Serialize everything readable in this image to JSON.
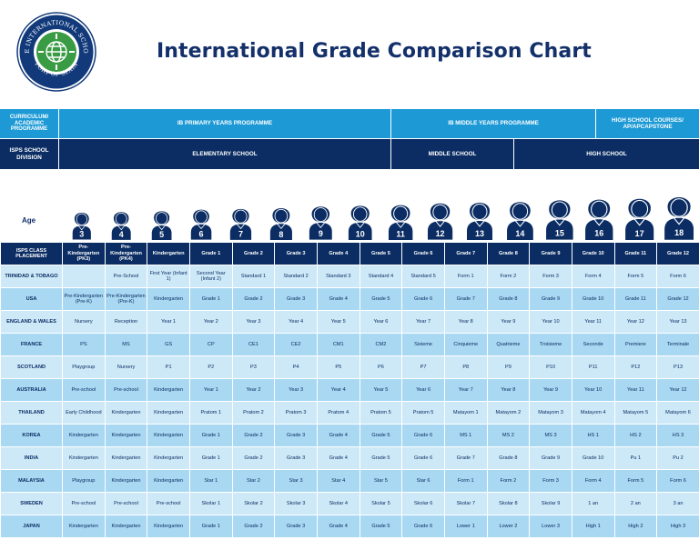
{
  "logo": {
    "text_top": "THE INTERNATIONAL SCHOOL",
    "text_bottom": "PORT OF SPAIN",
    "colors": {
      "navy": "#123a7a",
      "green": "#3a9b45",
      "blue": "#1d9ad6"
    }
  },
  "title": "International Grade Comparison Chart",
  "colors": {
    "light_blue": "#1d9ad6",
    "navy": "#0b2d63",
    "row_light": "#cde9f8",
    "row_mid": "#a9d8f2"
  },
  "curriculum": {
    "label": "CURRICULUM/ ACADEMIC PROGRAMME",
    "pyp": "IB PRIMARY YEARS PROGRAMME",
    "myp": "IB MIDDLE YEARS PROGRAMME",
    "hs": "HIGH SCHOOL COURSES/ AP/APCAPSTONE"
  },
  "division": {
    "label": "ISPS SCHOOL DIVISION",
    "elementary": "ELEMENTARY SCHOOL",
    "middle": "MIDDLE SCHOOL",
    "high": "HIGH SCHOOL"
  },
  "age": {
    "label": "Age",
    "values": [
      "3",
      "4",
      "5",
      "6",
      "7",
      "8",
      "9",
      "10",
      "11",
      "12",
      "13",
      "14",
      "15",
      "16",
      "17",
      "18"
    ]
  },
  "table": {
    "header_label": "ISPS CLASS PLACEMENT",
    "columns": [
      "Pre-Kindergarten (PK3)",
      "Pre-Kindergarten (PK4)",
      "Kindergarten",
      "Grade 1",
      "Grade 2",
      "Grade 3",
      "Grade 4",
      "Grade 5",
      "Grade 6",
      "Grade 7",
      "Grade 8",
      "Grade 9",
      "Grade 10",
      "Grade 11",
      "Grade 12"
    ],
    "rows": [
      {
        "label": "TRINIDAD & TOBAGO",
        "cells": [
          "",
          "Pre-School",
          "First Year (Infant 1)",
          "Second Year (Infant 2)",
          "Standard 1",
          "Standard 2",
          "Standard 3",
          "Standard 4",
          "Standard 5",
          "Form 1",
          "Form 2",
          "Form 3",
          "Form 4",
          "Form 5",
          "Form 6"
        ]
      },
      {
        "label": "USA",
        "cells": [
          "Pre-Kindergarten (Pre-K)",
          "Pre-Kindergarten (Pre-K)",
          "Kindergarten",
          "Grade 1",
          "Grade 2",
          "Grade 3",
          "Grade 4",
          "Grade 5",
          "Grade 6",
          "Grade 7",
          "Grade 8",
          "Grade 9",
          "Grade 10",
          "Grade 11",
          "Grade 12"
        ]
      },
      {
        "label": "ENGLAND & WALES",
        "cells": [
          "Nursery",
          "Reception",
          "Year 1",
          "Year 2",
          "Year 3",
          "Year 4",
          "Year 5",
          "Year 6",
          "Year 7",
          "Year 8",
          "Year 9",
          "Year 10",
          "Year 11",
          "Year 12",
          "Year 13"
        ]
      },
      {
        "label": "FRANCE",
        "cells": [
          "PS",
          "MS",
          "GS",
          "CP",
          "CE1",
          "CE2",
          "CM1",
          "CM2",
          "Sixieme",
          "Cinquieme",
          "Quatrieme",
          "Troisieme",
          "Seconde",
          "Premiere",
          "Terminale"
        ]
      },
      {
        "label": "SCOTLAND",
        "cells": [
          "Playgroup",
          "Nursery",
          "P1",
          "P2",
          "P3",
          "P4",
          "P5",
          "P6",
          "P7",
          "P8",
          "P9",
          "P10",
          "P11",
          "P12",
          "P13"
        ]
      },
      {
        "label": "AUSTRALIA",
        "cells": [
          "Pre-school",
          "Pre-school",
          "Kindergarten",
          "Year 1",
          "Year 2",
          "Year 3",
          "Year 4",
          "Year 5",
          "Year 6",
          "Year 7",
          "Year 8",
          "Year 9",
          "Year 10",
          "Year 11",
          "Year 12"
        ]
      },
      {
        "label": "THAILAND",
        "cells": [
          "Early Childhood",
          "Kindergarten",
          "Kindergarten",
          "Pratom 1",
          "Pratom 2",
          "Pratom 3",
          "Pratom 4",
          "Pratom 5",
          "Pratom 5",
          "Matayom 1",
          "Matayom 2",
          "Matayom 3",
          "Matayom 4",
          "Matayom 5",
          "Matayom 6"
        ]
      },
      {
        "label": "KOREA",
        "cells": [
          "Kindergarten",
          "Kindergarten",
          "Kindergarten",
          "Grade 1",
          "Grade 2",
          "Grade 3",
          "Grade 4",
          "Grade 5",
          "Grade 6",
          "MS 1",
          "MS 2",
          "MS 3",
          "HS 1",
          "HS 2",
          "HS 3"
        ]
      },
      {
        "label": "INDIA",
        "cells": [
          "Kindergarten",
          "Kindergarten",
          "Kindergarten",
          "Grade 1",
          "Grade 2",
          "Grade 3",
          "Grade 4",
          "Grade 5",
          "Grade 6",
          "Grade 7",
          "Grade 8",
          "Grade 9",
          "Grade 10",
          "Pu 1",
          "Pu 2"
        ]
      },
      {
        "label": "MALAYSIA",
        "cells": [
          "Playgroup",
          "Kindergarten",
          "Kindergarten",
          "Star 1",
          "Star 2",
          "Star 3",
          "Star 4",
          "Star 5",
          "Star 6",
          "Form 1",
          "Form 2",
          "Form 3",
          "Form 4",
          "Form 5",
          "Form 6"
        ]
      },
      {
        "label": "SWEDEN",
        "cells": [
          "Pre-school",
          "Pre-school",
          "Pre-school",
          "Skolar 1",
          "Skolar 2",
          "Skolar 3",
          "Skolar 4",
          "Skolar 5",
          "Skolar 6",
          "Skolar 7",
          "Skolar 8",
          "Skolar 9",
          "1 an",
          "2 an",
          "3 an"
        ]
      },
      {
        "label": "JAPAN",
        "cells": [
          "Kindergarten",
          "Kindergarten",
          "Kindergarten",
          "Grade 1",
          "Grade 2",
          "Grade 3",
          "Grade 4",
          "Grade 5",
          "Grade 6",
          "Lower 1",
          "Lower 2",
          "Lower 3",
          "High 1",
          "High 2",
          "High 3"
        ]
      }
    ]
  }
}
